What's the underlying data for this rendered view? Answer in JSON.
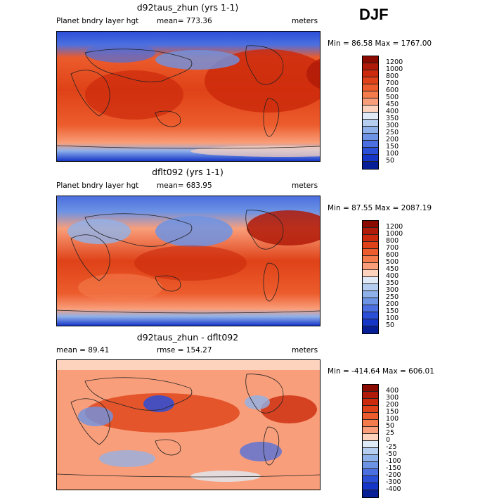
{
  "season": "DJF",
  "panels": [
    {
      "title": "d92taus_zhun (yrs 1-1)",
      "left_label": "Planet bndry layer hgt",
      "center_label": "mean= 773.36",
      "units": "meters",
      "minmax": "Min =  86.58 Max = 1767.00",
      "levels": [
        "1200",
        "1000",
        "800",
        "700",
        "600",
        "500",
        "450",
        "400",
        "350",
        "300",
        "250",
        "200",
        "150",
        "100",
        "50"
      ],
      "colors": [
        "#8b0a00",
        "#b01a08",
        "#cc2a0c",
        "#df4218",
        "#ec5c2c",
        "#f37b4c",
        "#f99e7a",
        "#fdd3be",
        "#dfeaf6",
        "#b5ceef",
        "#8fb1ea",
        "#6d93e4",
        "#4b6fe0",
        "#2c4fd8",
        "#1636c8",
        "#061e96"
      ]
    },
    {
      "title": "dflt092 (yrs 1-1)",
      "left_label": "Planet bndry layer hgt",
      "center_label": "mean= 683.95",
      "units": "meters",
      "minmax": "Min =  87.55 Max = 2087.19",
      "levels": [
        "1200",
        "1000",
        "800",
        "700",
        "600",
        "500",
        "450",
        "400",
        "350",
        "300",
        "250",
        "200",
        "150",
        "100",
        "50"
      ],
      "colors": [
        "#8b0a00",
        "#b01a08",
        "#cc2a0c",
        "#df4218",
        "#ec5c2c",
        "#f37b4c",
        "#f99e7a",
        "#fdd3be",
        "#dfeaf6",
        "#b5ceef",
        "#8fb1ea",
        "#6d93e4",
        "#4b6fe0",
        "#2c4fd8",
        "#1636c8",
        "#061e96"
      ]
    },
    {
      "title": "d92taus_zhun - dflt092",
      "left_label": "mean =   89.41",
      "center_label": "rmse =  154.27",
      "units": "meters",
      "minmax": "Min = -414.64 Max =  606.01",
      "levels": [
        "400",
        "300",
        "200",
        "150",
        "100",
        "50",
        "25",
        "0",
        "-25",
        "-50",
        "-100",
        "-150",
        "-200",
        "-300",
        "-400"
      ],
      "colors": [
        "#8b0a00",
        "#b01a08",
        "#cc2a0c",
        "#df4218",
        "#ec5c2c",
        "#f37b4c",
        "#f99e7a",
        "#fdd3be",
        "#dfeaf6",
        "#b5ceef",
        "#8fb1ea",
        "#6d93e4",
        "#4b6fe0",
        "#2c4fd8",
        "#1636c8",
        "#061e96"
      ]
    }
  ]
}
